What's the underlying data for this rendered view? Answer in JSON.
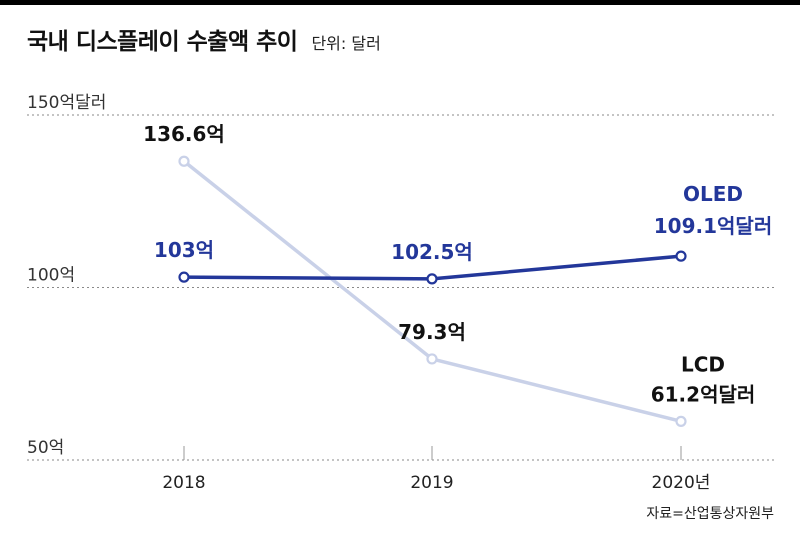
{
  "header": {
    "title": "국내 디스플레이 수출액 추이",
    "unit": "단위: 달러"
  },
  "chart_data": {
    "type": "line",
    "title": "국내 디스플레이 수출액 추이",
    "unit_label": "단위: 달러",
    "categories": [
      "2018",
      "2019",
      "2020년"
    ],
    "ylim": [
      50,
      150
    ],
    "y_ticks": [
      {
        "value": 150,
        "label": "150억달러"
      },
      {
        "value": 100,
        "label": "100억"
      },
      {
        "value": 50,
        "label": "50억"
      }
    ],
    "grid": true,
    "series": [
      {
        "name": "OLED",
        "color": "#23379a",
        "values": [
          103,
          102.5,
          109.1
        ],
        "labels": [
          "103억",
          "102.5억",
          "109.1억달러"
        ]
      },
      {
        "name": "LCD",
        "color": "#c9d1e8",
        "label_color": "#111111",
        "values": [
          136.6,
          79.3,
          61.2
        ],
        "labels": [
          "136.6억",
          "79.3억",
          "61.2억달러"
        ]
      }
    ]
  },
  "footer": {
    "source": "자료=산업통상자원부"
  }
}
